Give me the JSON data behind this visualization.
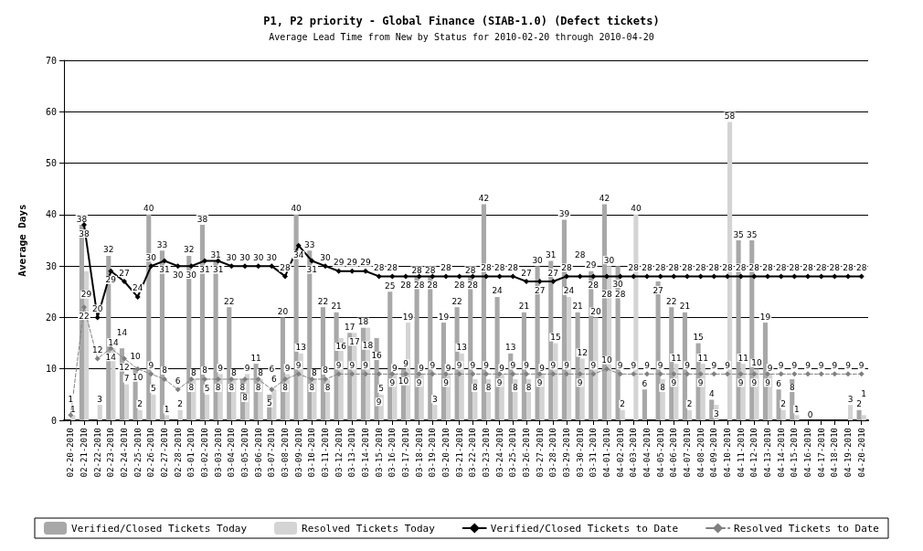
{
  "chart_data": {
    "type": "bar",
    "title": "P1, P2 priority - Global Finance (SIAB-1.0) (Defect tickets)",
    "subtitle": "Average Lead Time from New by Status for 2010-02-20 through 2010-04-20",
    "ylabel": "Average Days",
    "categories": [
      "02-20-2010",
      "02-21-2010",
      "02-22-2010",
      "02-23-2010",
      "02-24-2010",
      "02-25-2010",
      "02-26-2010",
      "02-27-2010",
      "02-28-2010",
      "03-01-2010",
      "03-02-2010",
      "03-03-2010",
      "03-04-2010",
      "03-05-2010",
      "03-06-2010",
      "03-07-2010",
      "03-08-2010",
      "03-09-2010",
      "03-10-2010",
      "03-11-2010",
      "03-12-2010",
      "03-13-2010",
      "03-14-2010",
      "03-15-2010",
      "03-16-2010",
      "03-17-2010",
      "03-18-2010",
      "03-19-2010",
      "03-20-2010",
      "03-21-2010",
      "03-22-2010",
      "03-23-2010",
      "03-24-2010",
      "03-25-2010",
      "03-26-2010",
      "03-27-2010",
      "03-28-2010",
      "03-29-2010",
      "03-30-2010",
      "03-31-2010",
      "04-01-2010",
      "04-02-2010",
      "04-03-2010",
      "04-04-2010",
      "04-05-2010",
      "04-06-2010",
      "04-07-2010",
      "04-08-2010",
      "04-09-2010",
      "04-10-2010",
      "04-11-2010",
      "04-12-2010",
      "04-13-2010",
      "04-14-2010",
      "04-15-2010",
      "04-16-2010",
      "04-17-2010",
      "04-18-2010",
      "04-19-2010",
      "04-20-2010"
    ],
    "series": [
      {
        "name": "Verified/Closed Tickets Today",
        "type": "bar",
        "color": "#a8a8a8",
        "values": [
          null,
          38,
          null,
          32,
          14,
          10,
          40,
          33,
          null,
          32,
          38,
          31,
          22,
          8,
          11,
          5,
          20,
          40,
          33,
          22,
          21,
          17,
          18,
          16,
          25,
          10,
          28,
          28,
          19,
          22,
          28,
          42,
          24,
          13,
          21,
          30,
          31,
          39,
          21,
          29,
          42,
          30,
          null,
          6,
          27,
          22,
          21,
          15,
          4,
          null,
          35,
          35,
          19,
          6,
          8,
          null,
          null,
          null,
          null,
          2
        ]
      },
      {
        "name": "Resolved Tickets Today",
        "type": "bar",
        "color": "#d4d4d4",
        "values": [
          1,
          29,
          3,
          14,
          7,
          2,
          5,
          1,
          2,
          8,
          5,
          9,
          8,
          9,
          8,
          6,
          9,
          13,
          8,
          8,
          16,
          17,
          18,
          5,
          9,
          19,
          9,
          3,
          9,
          13,
          8,
          8,
          9,
          8,
          8,
          9,
          15,
          24,
          12,
          20,
          30,
          2,
          40,
          null,
          8,
          11,
          2,
          11,
          3,
          58,
          11,
          10,
          9,
          2,
          1,
          0,
          null,
          null,
          3,
          1
        ]
      },
      {
        "name": "Verified/Closed Tickets to Date",
        "type": "line",
        "color": "#000000",
        "values": [
          null,
          38,
          20,
          29,
          27,
          24,
          30,
          31,
          30,
          30,
          31,
          31,
          30,
          30,
          30,
          30,
          28,
          34,
          31,
          30,
          29,
          29,
          29,
          28,
          28,
          28,
          28,
          28,
          28,
          28,
          28,
          28,
          28,
          28,
          27,
          27,
          27,
          28,
          28,
          28,
          28,
          28,
          28,
          28,
          28,
          28,
          28,
          28,
          28,
          28,
          28,
          28,
          28,
          28,
          28,
          28,
          28,
          28,
          28,
          28
        ]
      },
      {
        "name": "Resolved Tickets to Date",
        "type": "line",
        "color": "#808080",
        "line_style": "dashed",
        "values": [
          1,
          22,
          12,
          14,
          12,
          10,
          9,
          8,
          6,
          8,
          8,
          8,
          8,
          8,
          8,
          6,
          8,
          9,
          8,
          8,
          9,
          9,
          9,
          9,
          9,
          9,
          9,
          9,
          9,
          9,
          9,
          9,
          9,
          9,
          9,
          9,
          9,
          9,
          9,
          9,
          10,
          9,
          9,
          9,
          9,
          9,
          9,
          9,
          9,
          9,
          9,
          9,
          9,
          9,
          9,
          9,
          9,
          9,
          9,
          9
        ]
      }
    ],
    "ylim": [
      0,
      70
    ],
    "yticks": [
      0,
      10,
      20,
      30,
      40,
      50,
      60,
      70
    ],
    "grid": "y",
    "legend": "bottom",
    "marker": "diamond",
    "data_labels": true
  }
}
